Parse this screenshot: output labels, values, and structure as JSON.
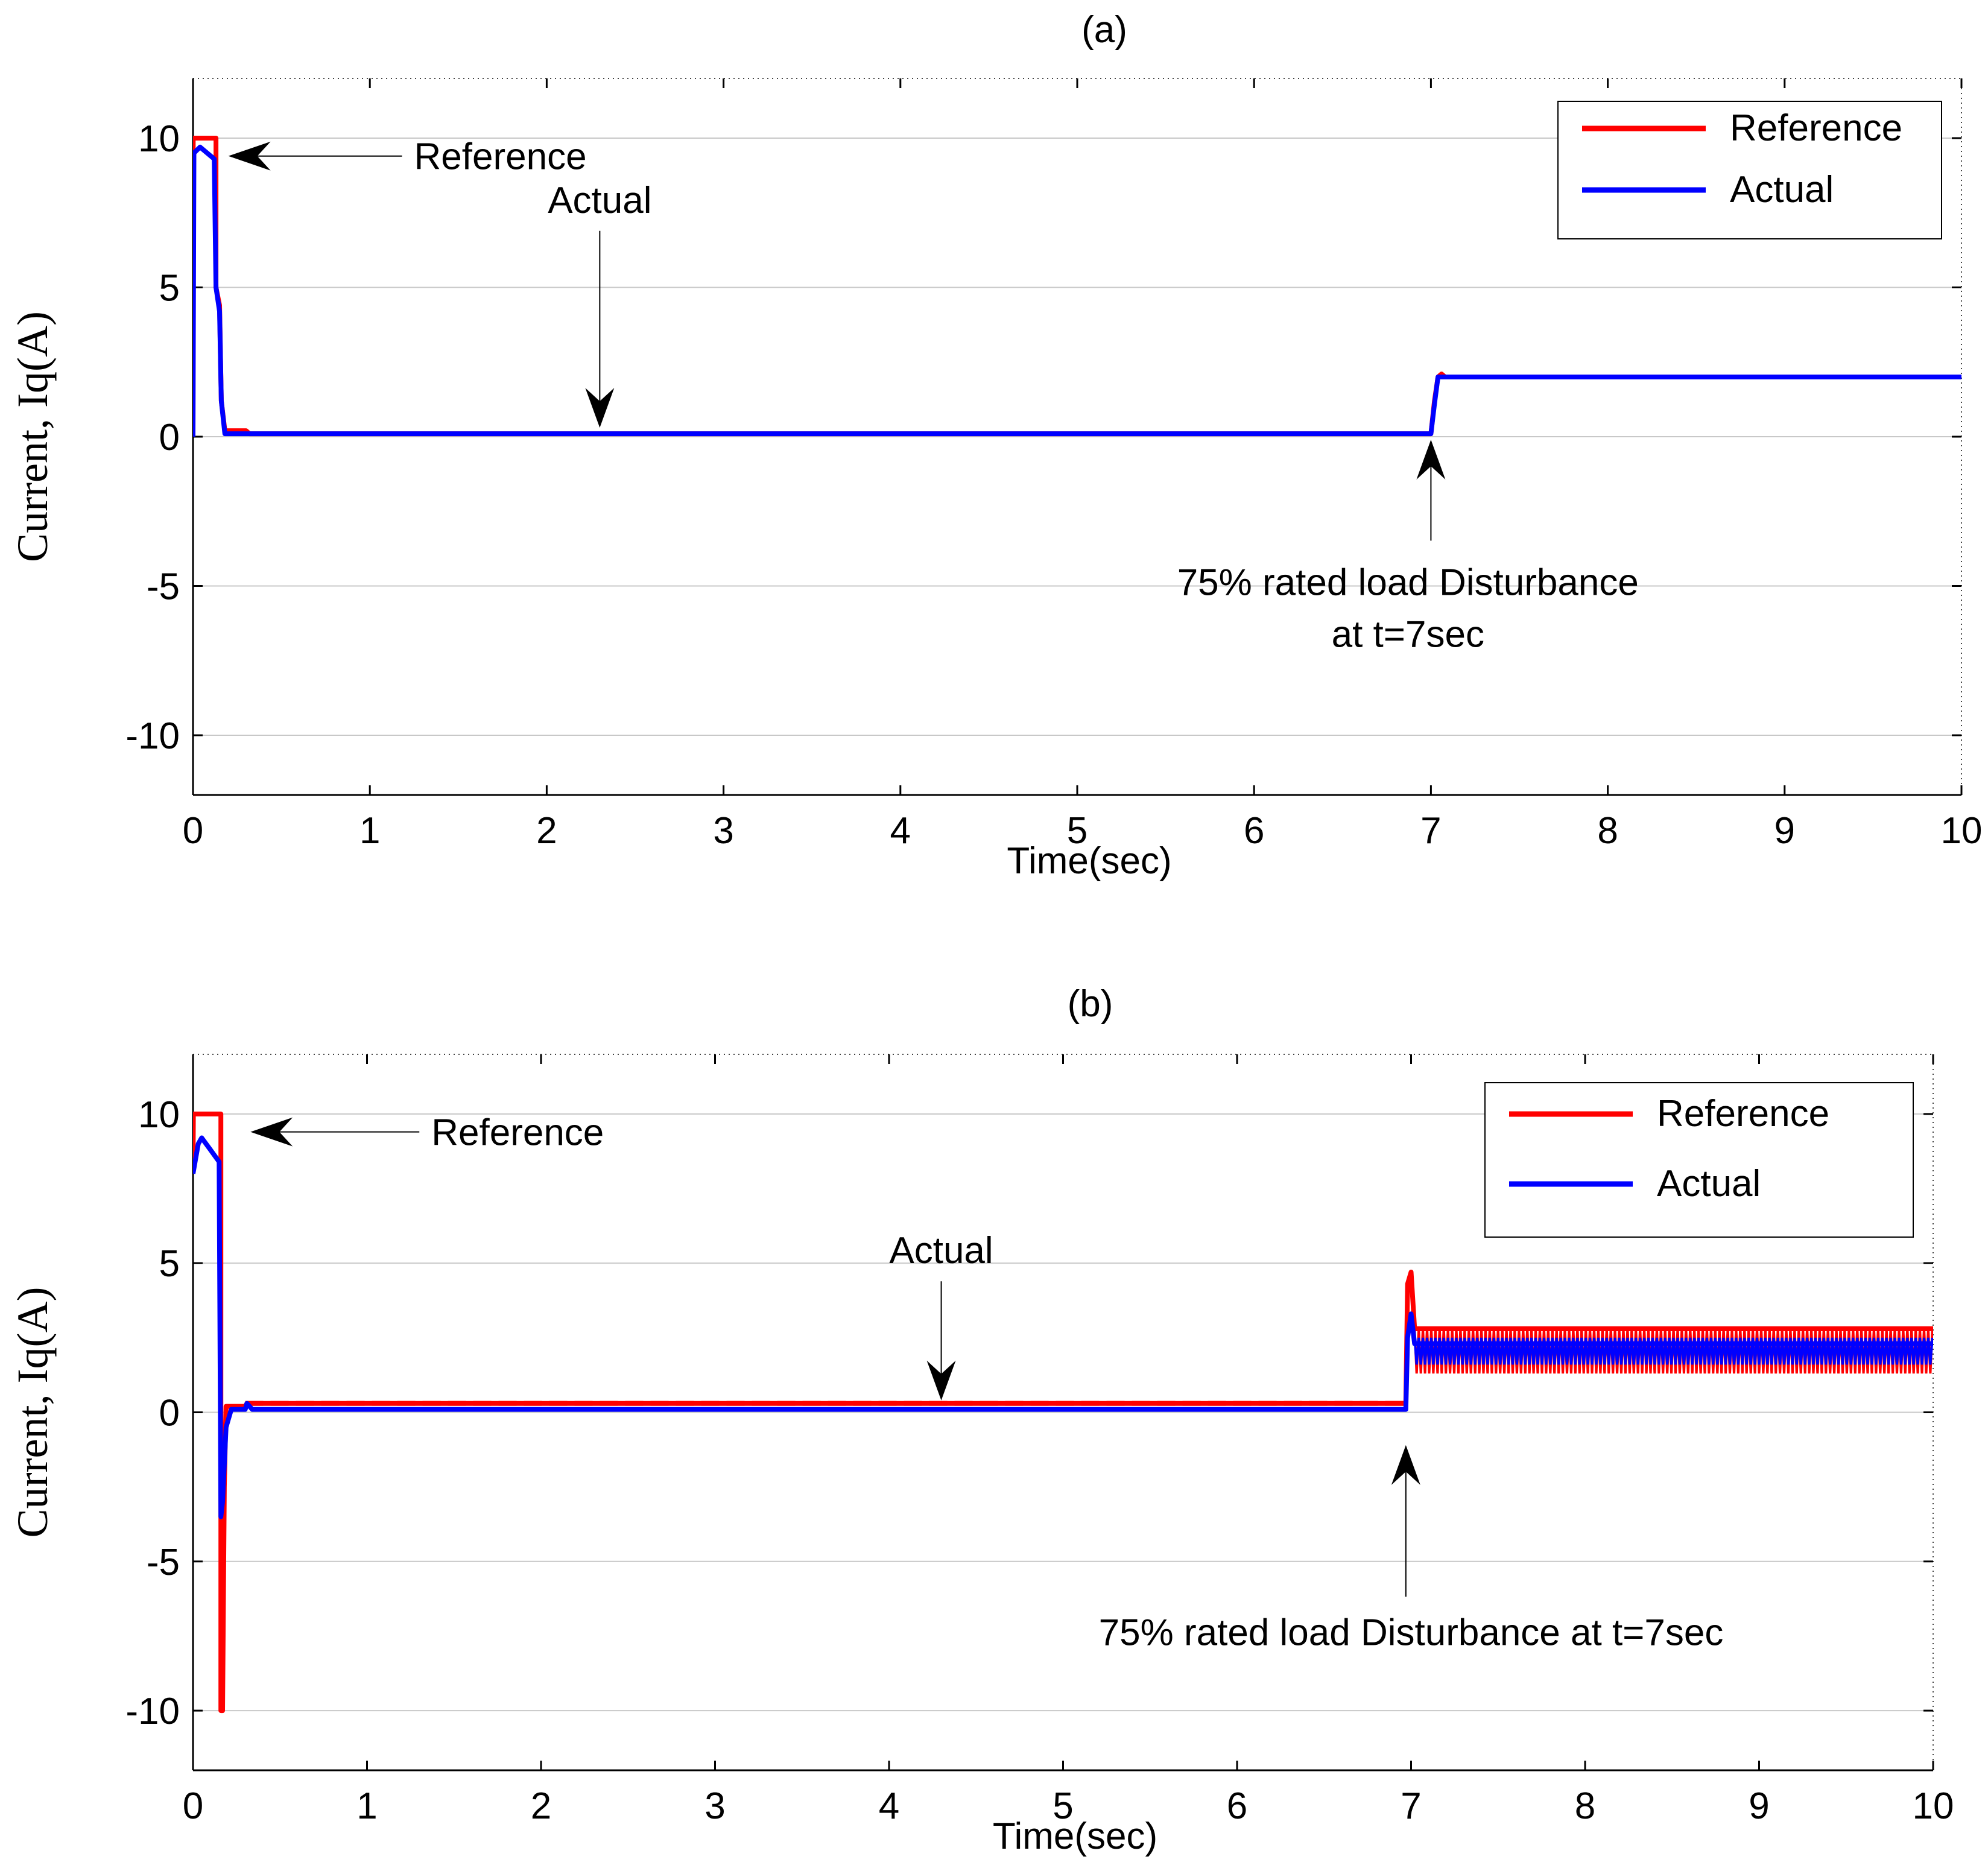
{
  "colors": {
    "reference": "#ff0000",
    "actual": "#0000ff",
    "grid": "#c8c8c8",
    "axis": "#000000"
  },
  "chart_data": [
    {
      "type": "line",
      "panel_label": "(a)",
      "xlabel": "Time(sec)",
      "ylabel": "Current, Iq(A)",
      "xlim": [
        0,
        10
      ],
      "ylim": [
        -12,
        12
      ],
      "xticks": [
        0,
        1,
        2,
        3,
        4,
        5,
        6,
        7,
        8,
        9,
        10
      ],
      "xtick_labels": [
        "0",
        "1",
        "2",
        "3",
        "4",
        "5",
        "6",
        "7",
        "8",
        "9",
        "10"
      ],
      "yticks": [
        10,
        5,
        0,
        -5,
        -10
      ],
      "ytick_labels": [
        "10",
        "5",
        "0",
        "-5",
        "-10"
      ],
      "grid": true,
      "legend": {
        "position": "top-right",
        "entries": [
          "Reference",
          "Actual"
        ]
      },
      "series": [
        {
          "name": "Reference",
          "color": "#ff0000",
          "points": [
            [
              0,
              0
            ],
            [
              0.001,
              10
            ],
            [
              0.13,
              10
            ],
            [
              0.13,
              5
            ],
            [
              0.15,
              4.4
            ],
            [
              0.16,
              1.2
            ],
            [
              0.18,
              0.2
            ],
            [
              0.3,
              0.2
            ],
            [
              0.32,
              0.1
            ],
            [
              7.0,
              0.1
            ],
            [
              7.02,
              1.2
            ],
            [
              7.04,
              2.0
            ],
            [
              7.06,
              2.1
            ],
            [
              7.08,
              2.0
            ],
            [
              10,
              2.0
            ]
          ]
        },
        {
          "name": "Actual",
          "color": "#0000ff",
          "points": [
            [
              0,
              0
            ],
            [
              0.005,
              9.5
            ],
            [
              0.04,
              9.7
            ],
            [
              0.12,
              9.3
            ],
            [
              0.13,
              5
            ],
            [
              0.15,
              4.2
            ],
            [
              0.16,
              1.2
            ],
            [
              0.18,
              0.1
            ],
            [
              7.0,
              0.1
            ],
            [
              7.02,
              1.1
            ],
            [
              7.04,
              2.0
            ],
            [
              10,
              2.0
            ]
          ]
        }
      ],
      "annotations": [
        {
          "id": "ref",
          "lines": [
            "Reference"
          ],
          "arrow_to": [
            0.2,
            9.4
          ],
          "text_at": [
            1.25,
            9.4
          ]
        },
        {
          "id": "act",
          "lines": [
            "Actual"
          ],
          "arrow_to": [
            2.3,
            0.3
          ],
          "text_at": [
            2.3,
            7.5
          ]
        },
        {
          "id": "dist",
          "lines": [
            "75%   rated load Disturbance",
            "at t=7sec"
          ],
          "arrow_to": [
            7.0,
            -0.1
          ],
          "text_at": [
            6.87,
            -5.3
          ]
        }
      ]
    },
    {
      "type": "line",
      "panel_label": "(b)",
      "xlabel": "Time(sec)",
      "ylabel": "Current, Iq(A)",
      "xlim": [
        0,
        10
      ],
      "ylim": [
        -12,
        12
      ],
      "xticks": [
        0,
        1,
        2,
        3,
        4,
        5,
        6,
        7,
        8,
        9,
        10
      ],
      "xtick_labels": [
        "0",
        "1",
        "2",
        "3",
        "4",
        "5",
        "6",
        "7",
        "8",
        "9",
        "10"
      ],
      "yticks": [
        10,
        5,
        0,
        -5,
        -10
      ],
      "ytick_labels": [
        "10",
        "5",
        "0",
        "-5",
        "-10"
      ],
      "grid": true,
      "legend": {
        "position": "top-right",
        "entries": [
          "Reference",
          "Actual"
        ]
      },
      "series": [
        {
          "name": "Reference",
          "color": "#ff0000",
          "points": [
            [
              0,
              8
            ],
            [
              0.002,
              10
            ],
            [
              0.16,
              10
            ],
            [
              0.16,
              -10
            ],
            [
              0.17,
              -10
            ],
            [
              0.18,
              -2.5
            ],
            [
              0.19,
              0.2
            ],
            [
              0.3,
              0.2
            ],
            [
              0.31,
              0.3
            ],
            [
              6.97,
              0.3
            ],
            [
              6.98,
              4.3
            ],
            [
              7.0,
              4.7
            ],
            [
              7.02,
              2.8
            ],
            [
              10,
              2.8
            ]
          ],
          "oscillation": {
            "from": 7.02,
            "to": 10,
            "min": 1.3,
            "max": 2.8
          }
        },
        {
          "name": "Actual",
          "color": "#0000ff",
          "points": [
            [
              0,
              8
            ],
            [
              0.03,
              9.0
            ],
            [
              0.05,
              9.2
            ],
            [
              0.1,
              8.8
            ],
            [
              0.15,
              8.4
            ],
            [
              0.16,
              -3.5
            ],
            [
              0.17,
              -3.0
            ],
            [
              0.19,
              -0.5
            ],
            [
              0.22,
              0.1
            ],
            [
              0.3,
              0.1
            ],
            [
              0.31,
              0.3
            ],
            [
              0.34,
              0.1
            ],
            [
              6.97,
              0.1
            ],
            [
              6.98,
              2.5
            ],
            [
              7.0,
              3.3
            ],
            [
              7.02,
              2.3
            ],
            [
              10,
              2.3
            ]
          ],
          "oscillation": {
            "from": 7.02,
            "to": 10,
            "min": 1.6,
            "max": 2.5
          }
        }
      ],
      "annotations": [
        {
          "id": "ref",
          "lines": [
            "Reference"
          ],
          "arrow_to": [
            0.33,
            9.4
          ],
          "text_at": [
            1.37,
            9.4
          ]
        },
        {
          "id": "act",
          "lines": [
            "Actual"
          ],
          "arrow_to": [
            4.3,
            0.4
          ],
          "text_at": [
            4.3,
            5.0
          ]
        },
        {
          "id": "dist",
          "lines": [
            "75%   rated load Disturbance at t=7sec"
          ],
          "arrow_to": [
            6.97,
            -1.1
          ],
          "text_at": [
            7.0,
            -7.8
          ]
        }
      ]
    }
  ]
}
